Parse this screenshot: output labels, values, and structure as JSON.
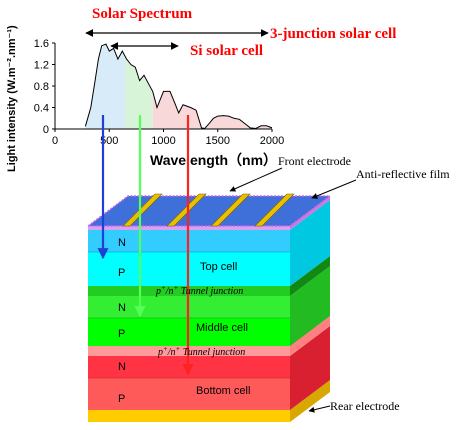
{
  "header": {
    "solar_spectrum": "Solar Spectrum",
    "three_junction": "3-junction solar cell",
    "si_cell": "Si solar cell"
  },
  "chart": {
    "y_label": "Light intensity (W.m⁻².nm⁻¹)",
    "x_label": "Wavelength（nm）",
    "y_ticks": [
      "0",
      "0.4",
      "0.8",
      "1.2",
      "1.6"
    ],
    "x_ticks": [
      "0",
      "500",
      "1000",
      "1500",
      "2000"
    ]
  },
  "chart_data": {
    "type": "area",
    "xlabel": "Wavelength（nm）",
    "ylabel": "Light intensity (W.m⁻².nm⁻¹)",
    "xlim": [
      0,
      2000
    ],
    "ylim": [
      0,
      1.6
    ],
    "x": [
      280,
      330,
      370,
      400,
      430,
      470,
      500,
      540,
      580,
      620,
      660,
      700,
      740,
      780,
      820,
      860,
      900,
      940,
      980,
      1000,
      1060,
      1100,
      1140,
      1180,
      1250,
      1300,
      1350,
      1380,
      1420,
      1460,
      1500,
      1550,
      1600,
      1650,
      1700,
      1750,
      1800,
      1850,
      1900,
      1950,
      2000
    ],
    "y": [
      0.05,
      0.4,
      0.9,
      1.3,
      1.55,
      1.58,
      1.45,
      1.5,
      1.3,
      1.45,
      1.3,
      1.2,
      1.15,
      0.9,
      1.0,
      0.85,
      0.7,
      0.4,
      0.6,
      0.7,
      0.7,
      0.5,
      0.3,
      0.45,
      0.4,
      0.35,
      0.02,
      0.01,
      0.1,
      0.2,
      0.24,
      0.25,
      0.24,
      0.2,
      0.18,
      0.1,
      0.02,
      0.01,
      0.06,
      0.06,
      0.02
    ],
    "band_edges_nm": [
      650,
      900
    ],
    "band_colors": [
      "#d7ecf8",
      "#d8f4d8",
      "#f8d8d8"
    ]
  },
  "labels": {
    "front_electrode": "Front electrode",
    "anti_reflective": "Anti-reflective film",
    "top_cell": "Top cell",
    "middle_cell": "Middle cell",
    "bottom_cell": "Bottom cell",
    "tunnel_prefix": "p",
    "tunnel_sup1": "+",
    "tunnel_mid": "/n",
    "tunnel_sup2": "+",
    "tunnel_suffix": " Tunnel junction",
    "rear_electrode": "Rear electrode",
    "n": "N",
    "p": "P"
  },
  "colors": {
    "top_cell": "#00ffff",
    "top_cell_n": "#33ccff",
    "middle_cell": "#00ff00",
    "middle_cell_n": "#33ee33",
    "bottom_cell": "#ff3344",
    "bottom_cell_p": "#ff5555",
    "tunnel": "#22cc22",
    "rear": "#ffcc00",
    "front_top": "#3f6fd8",
    "arrow_blue": "#1f3fd8",
    "arrow_green": "#55ff55",
    "arrow_red": "#ff2020",
    "title_red": "#ff0000"
  }
}
